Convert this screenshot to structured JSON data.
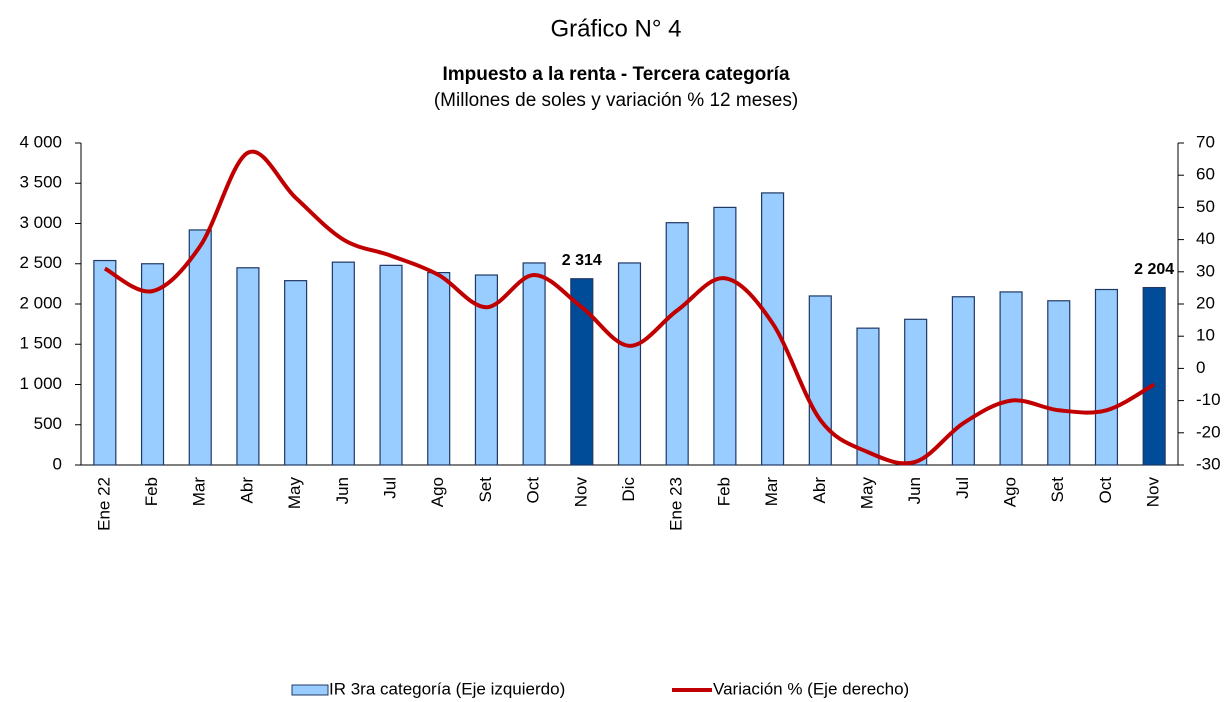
{
  "chart_data": {
    "type": "bar_line",
    "title": "Gráfico N° 4",
    "subtitle": "Impuesto a la renta - Tercera categoría",
    "note": "(Millones de soles y variación % 12 meses)",
    "categories": [
      "Ene 22",
      "Feb",
      "Mar",
      "Abr",
      "May",
      "Jun",
      "Jul",
      "Ago",
      "Set",
      "Oct",
      "Nov",
      "Dic",
      "Ene 23",
      "Feb",
      "Mar",
      "Abr",
      "May",
      "Jun",
      "Jul",
      "Ago",
      "Set",
      "Oct",
      "Nov"
    ],
    "series": [
      {
        "name": "IR 3ra categoría (Eje izquierdo)",
        "type": "bar",
        "color": "#99ccff",
        "edge_color": "#1f3864",
        "colors": [
          "#99ccff",
          "#99ccff",
          "#99ccff",
          "#99ccff",
          "#99ccff",
          "#99ccff",
          "#99ccff",
          "#99ccff",
          "#99ccff",
          "#99ccff",
          "#004c99",
          "#99ccff",
          "#99ccff",
          "#99ccff",
          "#99ccff",
          "#99ccff",
          "#99ccff",
          "#99ccff",
          "#99ccff",
          "#99ccff",
          "#99ccff",
          "#99ccff",
          "#004c99"
        ],
        "values": [
          2540,
          2500,
          2920,
          2450,
          2290,
          2520,
          2480,
          2390,
          2360,
          2510,
          2314,
          2510,
          3010,
          3200,
          3380,
          2100,
          1700,
          1810,
          2090,
          2150,
          2040,
          2180,
          2204
        ],
        "value_labels": [
          null,
          null,
          null,
          null,
          null,
          null,
          null,
          null,
          null,
          null,
          "2 314",
          null,
          null,
          null,
          null,
          null,
          null,
          null,
          null,
          null,
          null,
          null,
          "2 204"
        ]
      },
      {
        "name": "Variación % (Eje derecho)",
        "type": "line",
        "axis": "y2",
        "color": "#c00000",
        "values": [
          31,
          24,
          38,
          67,
          53,
          40,
          35,
          29,
          19,
          29,
          19,
          7,
          18,
          28,
          14,
          -16,
          -26,
          -29,
          -17,
          -10,
          -13,
          -13,
          -5
        ]
      }
    ],
    "ylim": [
      0,
      4000
    ],
    "yticks": [
      0,
      500,
      {
        "value": 1000,
        "label": "1 000"
      },
      {
        "value": 1500,
        "label": "1 500"
      },
      {
        "value": 2000,
        "label": "2 000"
      },
      {
        "value": 2500,
        "label": "2 500"
      },
      {
        "value": 3000,
        "label": "3 000"
      },
      {
        "value": 3500,
        "label": "3 500"
      },
      {
        "value": 4000,
        "label": "4 000"
      }
    ],
    "y2lim": [
      -30,
      70
    ],
    "y2ticks": [
      -30,
      -20,
      -10,
      0,
      10,
      20,
      30,
      40,
      50,
      60,
      70
    ],
    "grid": false,
    "legend": "bottom"
  }
}
